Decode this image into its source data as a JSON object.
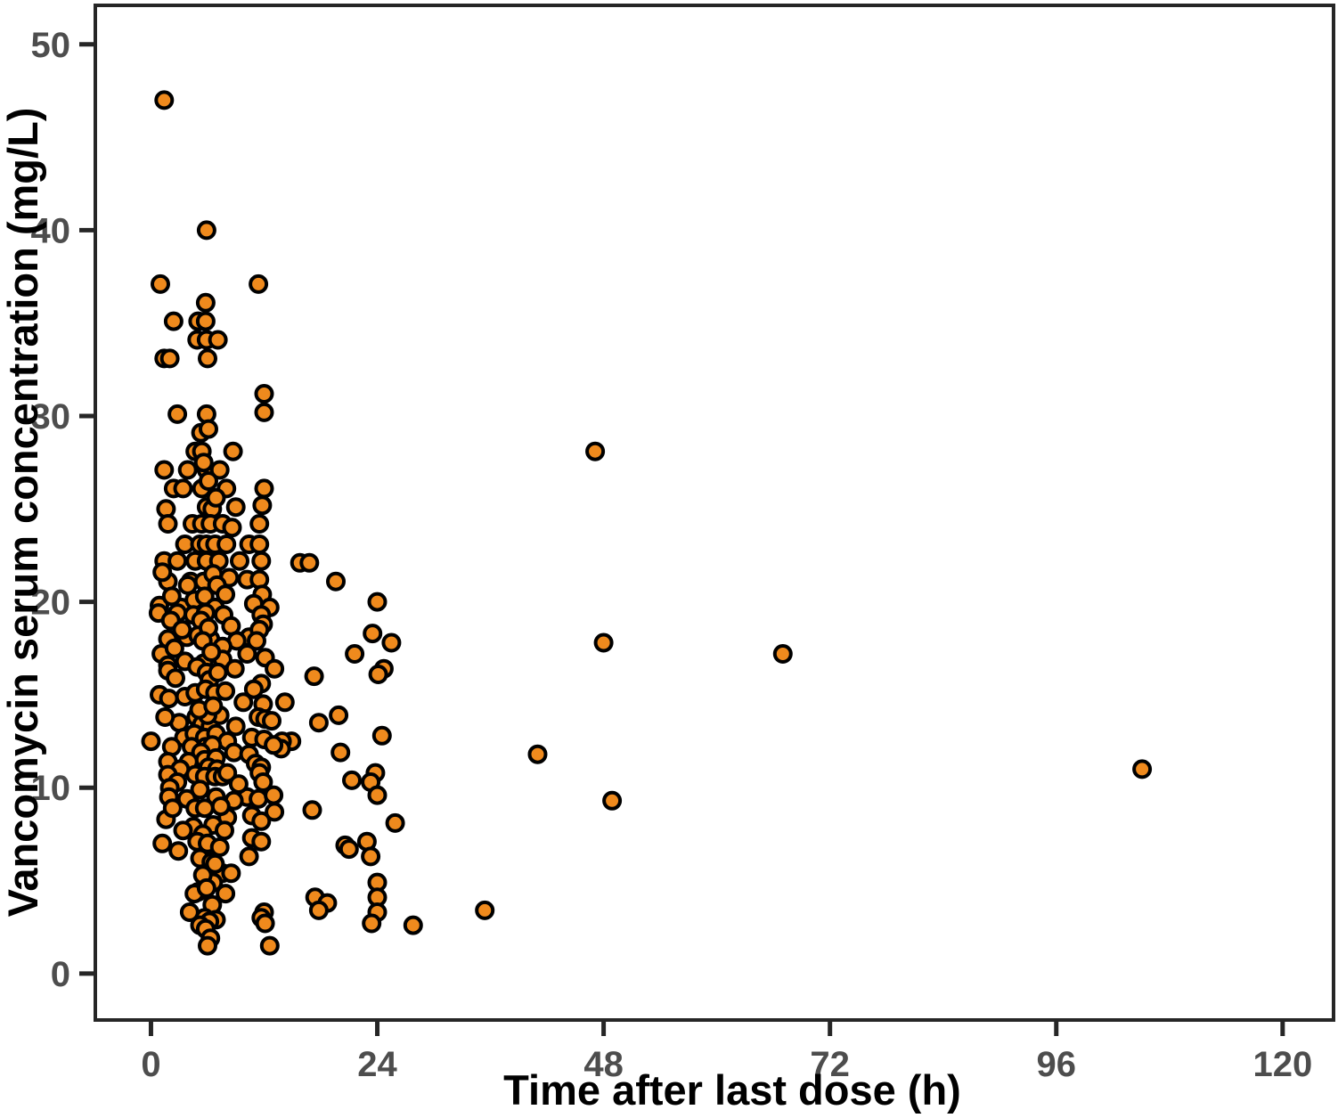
{
  "figure": {
    "title": "",
    "x_axis_title": "Time after last dose (h)",
    "y_axis_title": "Vancomycin serum concentration (mg/L)"
  },
  "chart_data": {
    "type": "scatter",
    "title": "",
    "xlabel": "Time after last dose (h)",
    "ylabel": "Vancomycin serum concentration (mg/L)",
    "x_ticks": [
      0,
      24,
      48,
      72,
      96,
      120
    ],
    "y_ticks": [
      0,
      10,
      20,
      30,
      40,
      50
    ],
    "xlim": [
      -5.9,
      125.4
    ],
    "ylim": [
      -2.5,
      52.1
    ],
    "grid": false,
    "legend": "none",
    "marker": {
      "fill": "#EF8A1D",
      "stroke": "#000000",
      "radius_px": 9,
      "stroke_width_px": 4
    },
    "axis_style": {
      "tick_label_color": "#4d4d4d",
      "title_color": "#000000",
      "border_color": "#262626",
      "tick_color": "#262626"
    },
    "points": [
      [
        1.4,
        47
      ],
      [
        5.9,
        40
      ],
      [
        1.0,
        37.1
      ],
      [
        11.4,
        37.1
      ],
      [
        5.8,
        36.1
      ],
      [
        2.4,
        35.1
      ],
      [
        5.0,
        35.1
      ],
      [
        5.8,
        35.1
      ],
      [
        4.9,
        34.1
      ],
      [
        5.9,
        34.1
      ],
      [
        7.1,
        34.1
      ],
      [
        1.4,
        33.1
      ],
      [
        2.0,
        33.1
      ],
      [
        6.0,
        33.1
      ],
      [
        12.0,
        31.2
      ],
      [
        2.8,
        30.1
      ],
      [
        5.9,
        30.1
      ],
      [
        12.0,
        30.2
      ],
      [
        5.3,
        29.1
      ],
      [
        6.1,
        29.3
      ],
      [
        4.7,
        28.1
      ],
      [
        5.4,
        28.1
      ],
      [
        8.7,
        28.1
      ],
      [
        47.1,
        28.1
      ],
      [
        1.4,
        27.1
      ],
      [
        3.9,
        27.1
      ],
      [
        5.9,
        27.1
      ],
      [
        7.3,
        27.1
      ],
      [
        5.6,
        27.5
      ],
      [
        2.4,
        26.1
      ],
      [
        3.4,
        26.1
      ],
      [
        5.4,
        26.1
      ],
      [
        8.0,
        26.1
      ],
      [
        12.0,
        26.1
      ],
      [
        6.1,
        26.5
      ],
      [
        1.6,
        25.0
      ],
      [
        5.9,
        25.1
      ],
      [
        6.5,
        25.0
      ],
      [
        9.0,
        25.1
      ],
      [
        11.8,
        25.2
      ],
      [
        6.9,
        25.6
      ],
      [
        1.8,
        24.2
      ],
      [
        4.4,
        24.2
      ],
      [
        5.4,
        24.2
      ],
      [
        6.3,
        24.2
      ],
      [
        7.6,
        24.2
      ],
      [
        11.5,
        24.2
      ],
      [
        8.6,
        24.0
      ],
      [
        3.6,
        23.1
      ],
      [
        5.2,
        23.1
      ],
      [
        5.9,
        23.1
      ],
      [
        6.8,
        23.1
      ],
      [
        8.0,
        23.1
      ],
      [
        10.4,
        23.1
      ],
      [
        11.5,
        23.1
      ],
      [
        1.4,
        22.2
      ],
      [
        2.8,
        22.2
      ],
      [
        4.7,
        22.2
      ],
      [
        5.9,
        22.2
      ],
      [
        7.2,
        22.2
      ],
      [
        11.7,
        22.2
      ],
      [
        9.4,
        22.2
      ],
      [
        15.8,
        22.1
      ],
      [
        16.8,
        22.1
      ],
      [
        1.8,
        21.1
      ],
      [
        4.2,
        21.1
      ],
      [
        5.6,
        21.1
      ],
      [
        10.2,
        21.2
      ],
      [
        11.5,
        21.2
      ],
      [
        19.6,
        21.1
      ],
      [
        1.2,
        21.6
      ],
      [
        6.6,
        21.5
      ],
      [
        8.3,
        21.3
      ],
      [
        7.0,
        20.9
      ],
      [
        0.9,
        19.8
      ],
      [
        3.2,
        19.7
      ],
      [
        4.6,
        20.1
      ],
      [
        5.7,
        20.3
      ],
      [
        6.8,
        19.7
      ],
      [
        7.9,
        20.4
      ],
      [
        11.8,
        20.4
      ],
      [
        12.6,
        19.7
      ],
      [
        24.0,
        20.0
      ],
      [
        10.9,
        19.9
      ],
      [
        3.9,
        20.9
      ],
      [
        2.2,
        20.3
      ],
      [
        0.8,
        19.4
      ],
      [
        2.8,
        19.4
      ],
      [
        4.5,
        19.3
      ],
      [
        5.8,
        19.4
      ],
      [
        7.7,
        19.3
      ],
      [
        11.7,
        19.3
      ],
      [
        2.1,
        19.0
      ],
      [
        5.3,
        19.0
      ],
      [
        11.9,
        18.8
      ],
      [
        1.8,
        18.0
      ],
      [
        3.8,
        18.1
      ],
      [
        5.0,
        18.2
      ],
      [
        6.3,
        18.0
      ],
      [
        8.5,
        18.7
      ],
      [
        10.4,
        18.1
      ],
      [
        11.5,
        18.5
      ],
      [
        23.5,
        18.3
      ],
      [
        3.3,
        18.5
      ],
      [
        6.1,
        18.6
      ],
      [
        9.1,
        17.9
      ],
      [
        11.2,
        17.9
      ],
      [
        1.1,
        17.2
      ],
      [
        3.6,
        16.8
      ],
      [
        5.6,
        16.7
      ],
      [
        7.6,
        17.6
      ],
      [
        7.6,
        16.9
      ],
      [
        10.2,
        17.2
      ],
      [
        12.1,
        17.0
      ],
      [
        13.1,
        16.4
      ],
      [
        21.6,
        17.2
      ],
      [
        25.5,
        17.8
      ],
      [
        48.0,
        17.8
      ],
      [
        67.0,
        17.2
      ],
      [
        2.5,
        17.5
      ],
      [
        5.5,
        17.9
      ],
      [
        6.4,
        17.3
      ],
      [
        1.8,
        16.6
      ],
      [
        1.8,
        16.3
      ],
      [
        17.3,
        16.0
      ],
      [
        24.7,
        16.4
      ],
      [
        24.1,
        16.1
      ],
      [
        4.9,
        16.5
      ],
      [
        5.9,
        16.2
      ],
      [
        6.2,
        15.8
      ],
      [
        7.1,
        16.2
      ],
      [
        8.9,
        16.4
      ],
      [
        2.6,
        15.9
      ],
      [
        11.7,
        15.6
      ],
      [
        10.9,
        15.3
      ],
      [
        0.9,
        15.0
      ],
      [
        1.9,
        14.8
      ],
      [
        3.6,
        14.9
      ],
      [
        4.7,
        15.1
      ],
      [
        5.8,
        15.3
      ],
      [
        6.8,
        15.1
      ],
      [
        7.9,
        15.2
      ],
      [
        9.8,
        14.6
      ],
      [
        11.9,
        14.5
      ],
      [
        14.2,
        14.6
      ],
      [
        14.9,
        12.5
      ],
      [
        17.8,
        13.5
      ],
      [
        19.9,
        13.9
      ],
      [
        3.0,
        13.5
      ],
      [
        1.5,
        13.8
      ],
      [
        4.8,
        13.8
      ],
      [
        5.4,
        13.4
      ],
      [
        6.3,
        13.3
      ],
      [
        7.3,
        13.9
      ],
      [
        9.0,
        13.3
      ],
      [
        6.0,
        13.9
      ],
      [
        11.4,
        13.8
      ],
      [
        12.1,
        13.7
      ],
      [
        12.8,
        13.6
      ],
      [
        0.0,
        12.5
      ],
      [
        3.5,
        12.7
      ],
      [
        4.6,
        12.9
      ],
      [
        5.7,
        12.7
      ],
      [
        6.9,
        12.9
      ],
      [
        8.1,
        12.5
      ],
      [
        10.7,
        12.7
      ],
      [
        12.0,
        12.6
      ],
      [
        13.9,
        12.5
      ],
      [
        24.5,
        12.8
      ],
      [
        2.2,
        12.2
      ],
      [
        4.3,
        12.2
      ],
      [
        5.8,
        12.2
      ],
      [
        6.5,
        12.3
      ],
      [
        5.1,
        14.2
      ],
      [
        6.6,
        14.4
      ],
      [
        13.8,
        12.1
      ],
      [
        8.8,
        11.9
      ],
      [
        10.4,
        11.8
      ],
      [
        20.1,
        11.9
      ],
      [
        41.0,
        11.8
      ],
      [
        5.3,
        11.9
      ],
      [
        13.0,
        12.3
      ],
      [
        1.8,
        11.4
      ],
      [
        4.0,
        11.4
      ],
      [
        5.7,
        11.5
      ],
      [
        6.9,
        11.6
      ],
      [
        11.1,
        11.3
      ],
      [
        105.1,
        11.0
      ],
      [
        6.1,
        11.1
      ],
      [
        7.0,
        11.0
      ],
      [
        3.1,
        11.0
      ],
      [
        11.7,
        11.1
      ],
      [
        1.8,
        10.7
      ],
      [
        2.8,
        10.3
      ],
      [
        4.7,
        10.7
      ],
      [
        5.7,
        10.6
      ],
      [
        6.8,
        10.6
      ],
      [
        7.6,
        10.6
      ],
      [
        8.1,
        10.8
      ],
      [
        11.5,
        10.8
      ],
      [
        21.3,
        10.4
      ],
      [
        23.8,
        10.8
      ],
      [
        23.3,
        10.3
      ],
      [
        2.0,
        10.0
      ],
      [
        11.9,
        10.3
      ],
      [
        1.9,
        9.5
      ],
      [
        5.2,
        9.9
      ],
      [
        9.7,
        9.6
      ],
      [
        10.2,
        9.5
      ],
      [
        6.9,
        9.5
      ],
      [
        11.4,
        9.4
      ],
      [
        13.0,
        9.6
      ],
      [
        24.0,
        9.6
      ],
      [
        48.9,
        9.3
      ],
      [
        3.8,
        9.4
      ],
      [
        8.8,
        9.3
      ],
      [
        9.3,
        10.2
      ],
      [
        4.7,
        8.9
      ],
      [
        5.7,
        8.9
      ],
      [
        13.1,
        8.7
      ],
      [
        17.1,
        8.8
      ],
      [
        1.6,
        8.3
      ],
      [
        8.1,
        8.4
      ],
      [
        10.7,
        8.5
      ],
      [
        11.7,
        8.2
      ],
      [
        2.3,
        8.9
      ],
      [
        7.4,
        9.0
      ],
      [
        4.5,
        7.9
      ],
      [
        6.6,
        8.0
      ],
      [
        25.9,
        8.1
      ],
      [
        5.5,
        7.5
      ],
      [
        10.7,
        7.3
      ],
      [
        11.7,
        7.1
      ],
      [
        4.9,
        7.1
      ],
      [
        6.0,
        7.0
      ],
      [
        1.2,
        7.0
      ],
      [
        22.9,
        7.1
      ],
      [
        3.4,
        7.7
      ],
      [
        7.8,
        7.7
      ],
      [
        7.3,
        6.8
      ],
      [
        20.6,
        6.9
      ],
      [
        21.0,
        6.7
      ],
      [
        10.4,
        6.3
      ],
      [
        5.2,
        6.2
      ],
      [
        23.3,
        6.3
      ],
      [
        6.4,
        6.0
      ],
      [
        2.9,
        6.6
      ],
      [
        7.6,
        5.4
      ],
      [
        8.5,
        5.4
      ],
      [
        6.6,
        4.9
      ],
      [
        24.0,
        4.9
      ],
      [
        5.5,
        5.3
      ],
      [
        6.8,
        5.9
      ],
      [
        7.9,
        4.3
      ],
      [
        5.0,
        4.4
      ],
      [
        4.6,
        4.3
      ],
      [
        17.4,
        4.1
      ],
      [
        24.0,
        4.1
      ],
      [
        18.7,
        3.8
      ],
      [
        6.5,
        3.7
      ],
      [
        5.9,
        4.6
      ],
      [
        17.8,
        3.4
      ],
      [
        35.4,
        3.4
      ],
      [
        12.0,
        3.3
      ],
      [
        24.0,
        3.3
      ],
      [
        11.7,
        3.0
      ],
      [
        5.7,
        3.0
      ],
      [
        6.9,
        2.9
      ],
      [
        6.2,
        2.8
      ],
      [
        27.8,
        2.6
      ],
      [
        23.4,
        2.7
      ],
      [
        5.2,
        2.6
      ],
      [
        5.8,
        2.4
      ],
      [
        12.1,
        2.7
      ],
      [
        4.1,
        3.3
      ],
      [
        6.3,
        1.9
      ],
      [
        12.6,
        1.5
      ],
      [
        6.0,
        1.5
      ]
    ]
  }
}
